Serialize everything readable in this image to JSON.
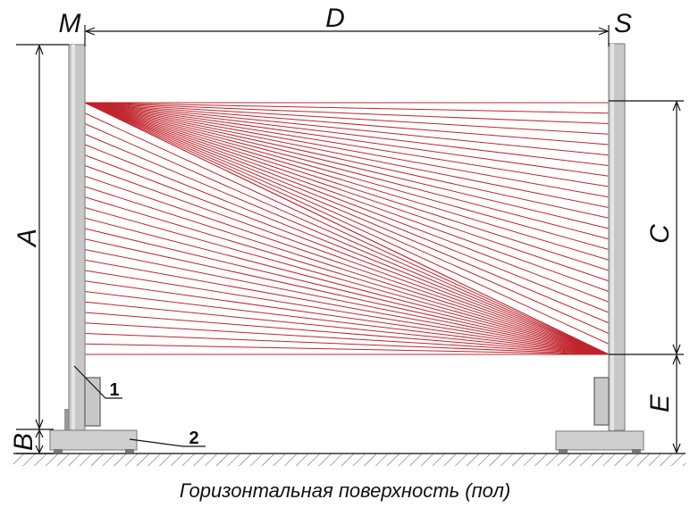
{
  "labels": {
    "M": "M",
    "D": "D",
    "S": "S",
    "A": "A",
    "B": "B",
    "C": "C",
    "E": "E"
  },
  "callouts": {
    "column": "1",
    "base": "2"
  },
  "caption": "Горизонтальная поверхность (пол)",
  "colors": {
    "beam": "#c0242c",
    "post": "#c8c8c8",
    "post_edge": "#888888"
  }
}
